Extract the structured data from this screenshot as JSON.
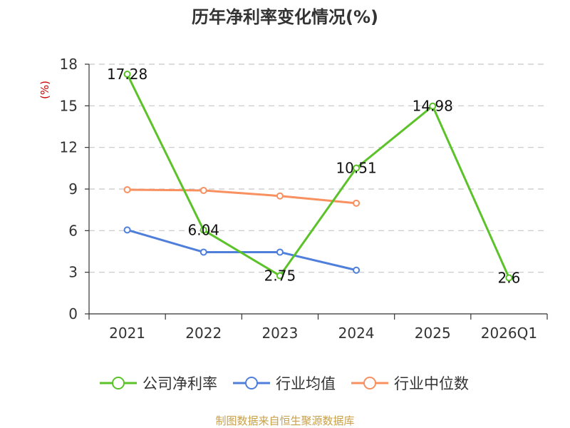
{
  "chart_data": {
    "type": "line",
    "title": "历年净利率变化情况(%)",
    "ylabel": "(%)",
    "xlabel": "",
    "categories": [
      "2021",
      "2022",
      "2023",
      "2024",
      "2025",
      "2026Q1"
    ],
    "ylim": [
      0,
      18
    ],
    "yticks": [
      0,
      3,
      6,
      9,
      12,
      15,
      18
    ],
    "grid": true,
    "legend_position": "bottom",
    "series": [
      {
        "name": "公司净利率",
        "color": "#5cc22a",
        "values": [
          17.28,
          6.04,
          2.75,
          10.51,
          14.98,
          2.6
        ],
        "labels": [
          "17.28",
          "6.04",
          "2.75",
          "10.51",
          "14.98",
          "2.6"
        ]
      },
      {
        "name": "行业均值",
        "color": "#4f7fdb",
        "values": [
          6.05,
          4.45,
          4.45,
          3.15,
          null,
          null
        ],
        "labels": null
      },
      {
        "name": "行业中位数",
        "color": "#f89060",
        "values": [
          8.95,
          8.9,
          8.5,
          7.98,
          null,
          null
        ],
        "labels": null
      }
    ]
  },
  "footer": {
    "source": "制图数据来自恒生聚源数据库"
  }
}
